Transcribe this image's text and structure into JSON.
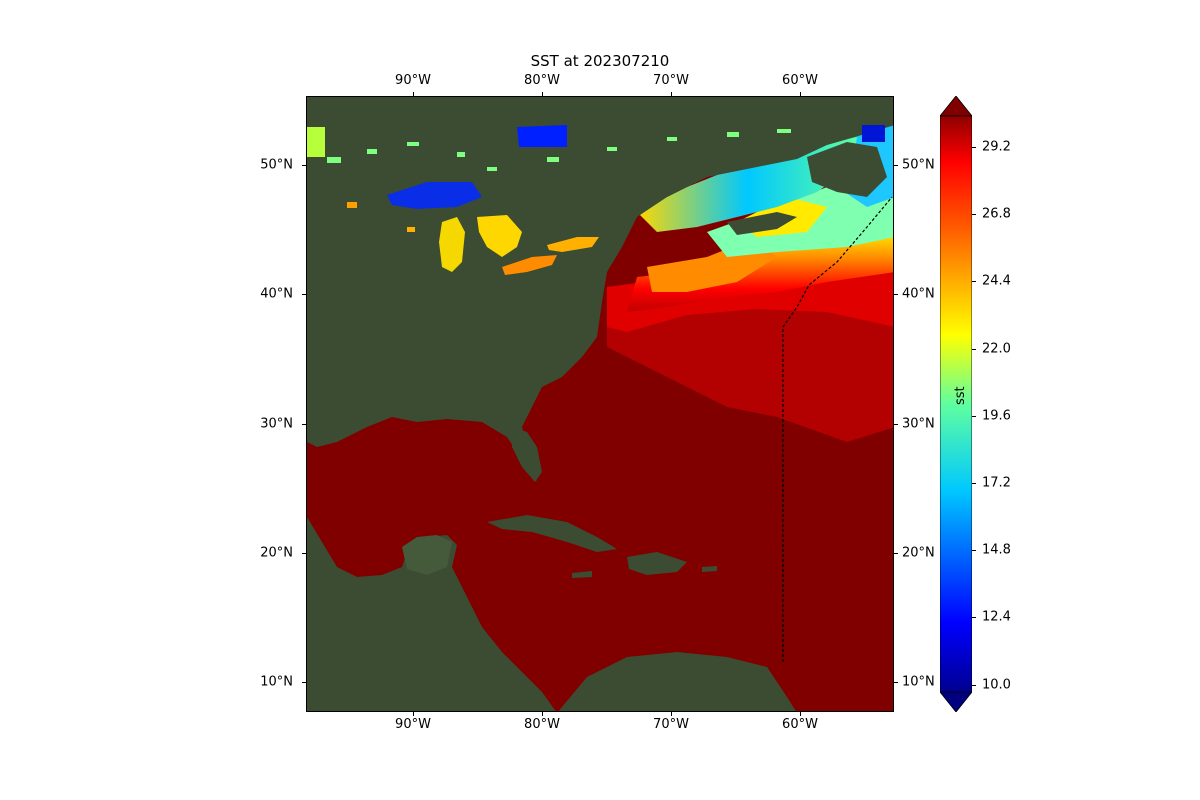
{
  "title": "SST at 202307210",
  "lon_ticks": [
    "90°W",
    "80°W",
    "70°W",
    "60°W"
  ],
  "lat_ticks": [
    "50°N",
    "40°N",
    "30°N",
    "20°N",
    "10°N"
  ],
  "colorbar": {
    "label": "sst",
    "ticks": [
      "29.2",
      "26.8",
      "24.4",
      "22.0",
      "19.6",
      "17.2",
      "14.8",
      "12.4",
      "10.0"
    ],
    "min": 10.0,
    "max": 30.4,
    "colormap": "jet",
    "extend": "both"
  },
  "colors": {
    "warm_ocean": "#800000",
    "land": "#3b4c32",
    "track": "#000000"
  }
}
